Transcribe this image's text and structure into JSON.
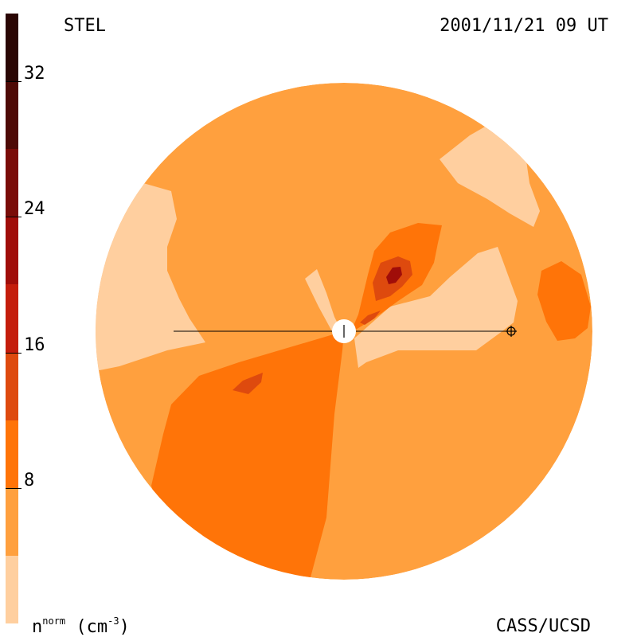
{
  "header": {
    "source": "STEL",
    "timestamp": "2001/11/21 09 UT"
  },
  "footer": {
    "credit": "CASS/UCSD",
    "unit_base": "n",
    "unit_sup": "norm",
    "unit_rest": "(cm",
    "unit_exp": "-3",
    "unit_close": ")"
  },
  "colorbar": {
    "ticks": [
      "32",
      "24",
      "16",
      "8"
    ],
    "tick_values": [
      32,
      24,
      16,
      8
    ],
    "range": [
      0,
      36
    ],
    "levels": [
      {
        "from": 32,
        "to": 36,
        "color": "#2a0604"
      },
      {
        "from": 28,
        "to": 32,
        "color": "#4e0a06"
      },
      {
        "from": 24,
        "to": 28,
        "color": "#7a0c08"
      },
      {
        "from": 20,
        "to": 24,
        "color": "#a00d09"
      },
      {
        "from": 16,
        "to": 20,
        "color": "#c41d0c"
      },
      {
        "from": 12,
        "to": 16,
        "color": "#de4a0e"
      },
      {
        "from": 8,
        "to": 12,
        "color": "#ff7408"
      },
      {
        "from": 4,
        "to": 8,
        "color": "#ffa03e"
      },
      {
        "from": 0,
        "to": 4,
        "color": "#ffcf9f"
      }
    ]
  },
  "colors": {
    "background_level": "#ffa03e",
    "low_level": "#ffcf9f",
    "mid_level": "#ff7408",
    "high_level": "#de4a0e",
    "peak_level": "#a00d09",
    "sun": "#ffffff",
    "line": "#000000"
  },
  "markers": {
    "sun_icon": "sun-disk-icon",
    "earth_icon": "earth-symbol-icon"
  }
}
